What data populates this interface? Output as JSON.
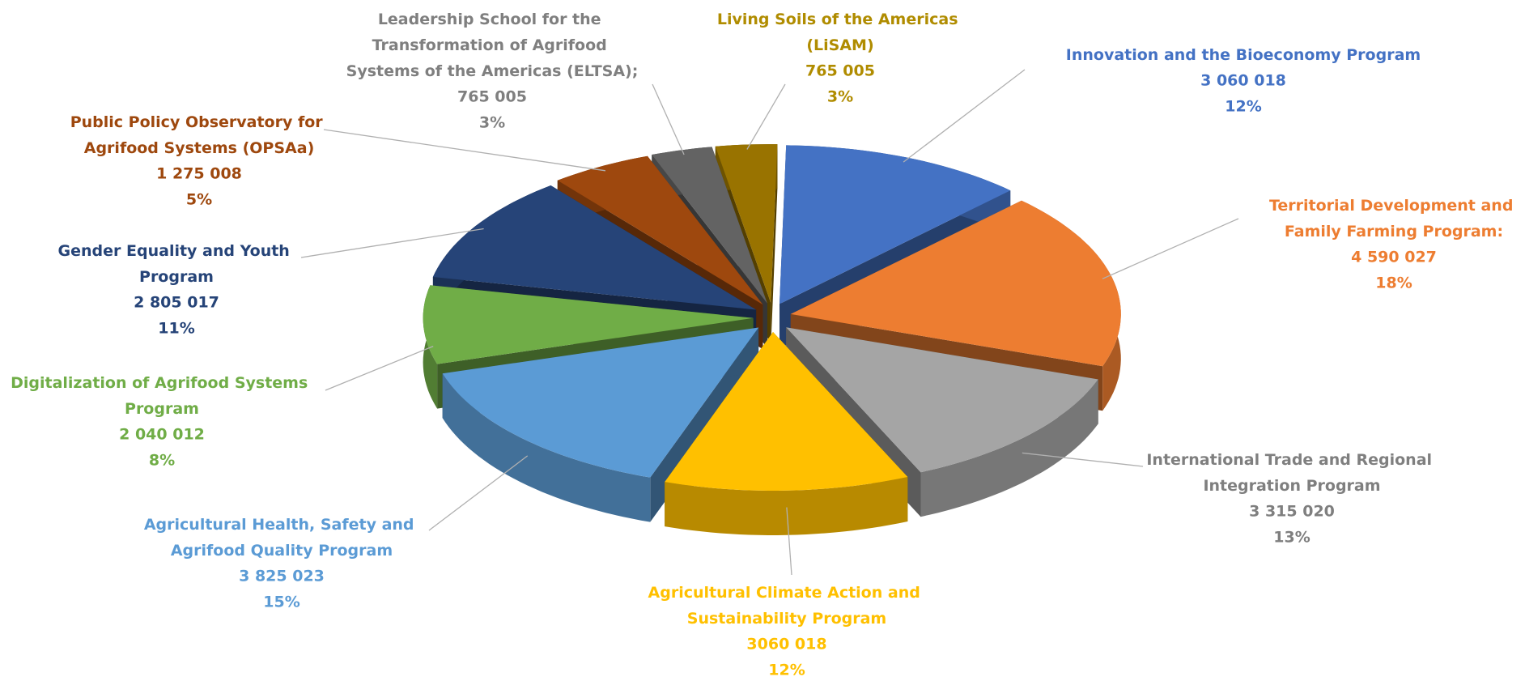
{
  "chart_data": {
    "type": "pie3d",
    "categories": [
      "Innovation and the Bioeconomy Program",
      "Territorial Development and Family Farming Program:",
      "International Trade and Regional Integration Program",
      "Agricultural Climate Action and Sustainability Program",
      "Agricultural Health, Safety and Agrifood Quality Program",
      "Digitalization of Agrifood Systems Program",
      "Gender Equality and Youth Program",
      "Public Policy Observatory for Agrifood Systems (OPSAa)",
      "Leadership School for the Transformation of Agrifood Systems of the Americas (ELTSA);",
      "Living Soils of the Americas (LiSAM)"
    ],
    "values": [
      3060018,
      4590027,
      3315020,
      3060018,
      3825023,
      2040012,
      2805017,
      1275008,
      765005,
      765005
    ],
    "value_labels": [
      "3 060 018",
      "4 590 027",
      "3 315 020",
      "3060 018",
      "3 825 023",
      "2 040 012",
      "2 805 017",
      "1 275 008",
      "765 005",
      "765 005"
    ],
    "percentages": [
      12,
      18,
      13,
      12,
      15,
      8,
      11,
      5,
      3,
      3
    ],
    "percentage_labels": [
      "12%",
      "18%",
      "13%",
      "12%",
      "15%",
      "8%",
      "11%",
      "5%",
      "3%",
      "3%"
    ],
    "colors": [
      "#4472c4",
      "#ed7d31",
      "#a5a5a5",
      "#ffc000",
      "#5b9bd5",
      "#70ad47",
      "#264478",
      "#9e480e",
      "#636363",
      "#997300"
    ],
    "label_colors": [
      "#4472c4",
      "#ed7d31",
      "#7f7f7f",
      "#ffc000",
      "#5b9bd5",
      "#70ad47",
      "#264478",
      "#9e480e",
      "#7f7f7f",
      "#b08c00"
    ]
  }
}
